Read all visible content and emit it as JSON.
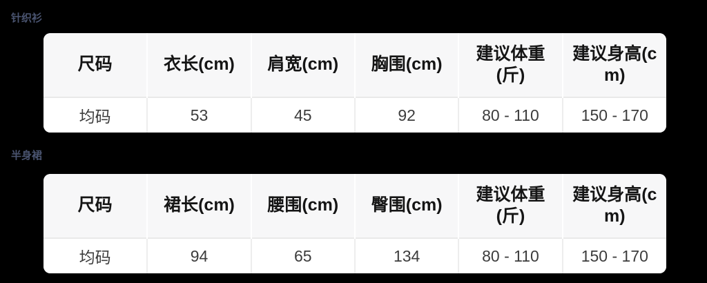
{
  "page": {
    "background_color": "#000000",
    "label_color": "#4a5470",
    "table_background": "#ffffff",
    "header_background": "#f7f7f8",
    "header_text_color": "#151515",
    "cell_text_color": "#3c3c3c",
    "divider_color": "#e9e9e9"
  },
  "sections": [
    {
      "label": "针织衫",
      "table": {
        "headers": [
          "尺码",
          "衣长(cm)",
          "肩宽(cm)",
          "胸围(cm)",
          "建议体重(斤)",
          "建议身高(cm)"
        ],
        "rows": [
          [
            "均码",
            "53",
            "45",
            "92",
            "80 - 110",
            "150 - 170"
          ]
        ]
      }
    },
    {
      "label": "半身裙",
      "table": {
        "headers": [
          "尺码",
          "裙长(cm)",
          "腰围(cm)",
          "臀围(cm)",
          "建议体重(斤)",
          "建议身高(cm)"
        ],
        "rows": [
          [
            "均码",
            "94",
            "65",
            "134",
            "80 - 110",
            "150 - 170"
          ]
        ]
      }
    }
  ]
}
